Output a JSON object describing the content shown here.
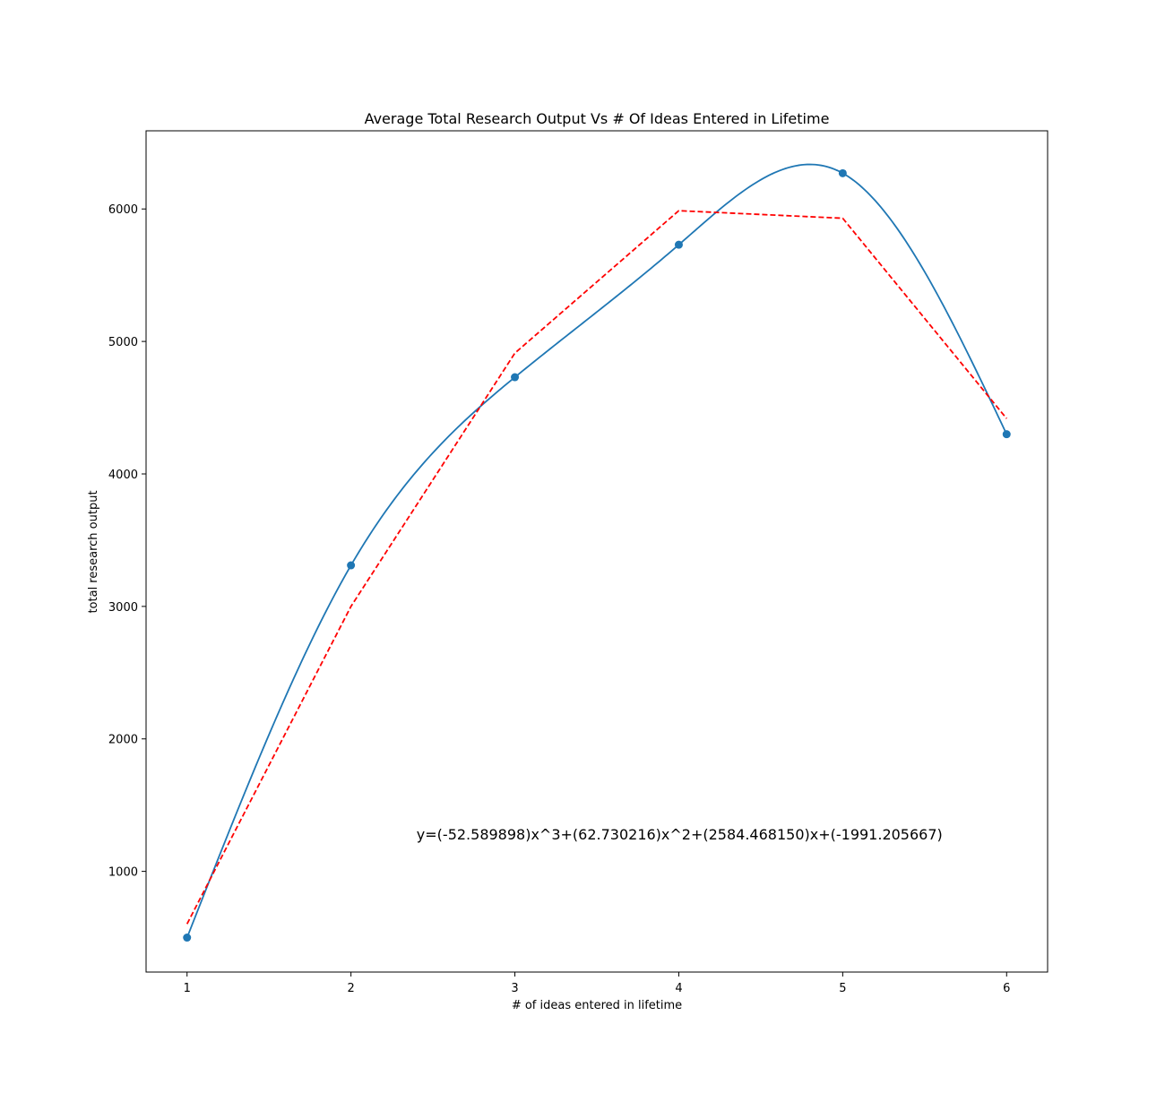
{
  "chart_data": {
    "type": "line",
    "title": "Average Total Research Output Vs # Of Ideas Entered in Lifetime",
    "xlabel": "# of ideas entered in lifetime",
    "ylabel": "total research output",
    "xlim": [
      0.75,
      6.25
    ],
    "ylim": [
      240,
      6590
    ],
    "xticks": [
      1,
      2,
      3,
      4,
      5,
      6
    ],
    "yticks": [
      1000,
      2000,
      3000,
      4000,
      5000,
      6000
    ],
    "grid": false,
    "series": [
      {
        "kind": "points-smooth",
        "color": "#1f77b4",
        "x": [
          1,
          2,
          3,
          4,
          5,
          6
        ],
        "y": [
          500,
          3310,
          4730,
          5730,
          6270,
          4300
        ]
      },
      {
        "kind": "dashed-fit",
        "color": "#ff0000",
        "x": [
          1,
          2,
          3,
          4,
          5,
          6
        ],
        "y": [
          603,
          3000,
          4912,
          5987,
          5930,
          4418
        ]
      }
    ],
    "annotations": [
      {
        "text": "y=(-52.589898)x^3+(62.730216)x^2+(2584.468150)x+(-1991.205667)",
        "x": 2.4,
        "y": 1280
      }
    ]
  }
}
